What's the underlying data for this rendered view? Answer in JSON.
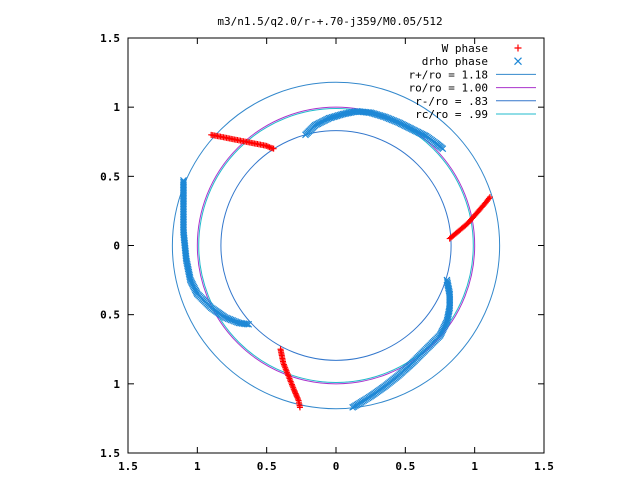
{
  "chart_data": {
    "type": "scatter",
    "title": "m3/n1.5/q2.0/r-+.70-j359/M0.05/512",
    "xlabel": "",
    "ylabel": "",
    "xlim": [
      -1.5,
      1.5
    ],
    "ylim": [
      -1.5,
      1.5
    ],
    "x_ticks": [
      -1.5,
      -1,
      -0.5,
      0,
      0.5,
      1,
      1.5
    ],
    "y_ticks": [
      -1.5,
      -1,
      -0.5,
      0,
      0.5,
      1,
      1.5
    ],
    "x_tick_labels": [
      "1.5",
      "1",
      "0.5",
      "0",
      "0.5",
      "1",
      "1.5"
    ],
    "y_tick_labels": [
      "1.5",
      "1",
      "0.5",
      "0",
      "0.5",
      "1",
      "1.5"
    ],
    "grid": false,
    "legend_position": "top-right",
    "legend": [
      {
        "label": "W phase",
        "kind": "points",
        "marker": "+",
        "color": "#ff0000"
      },
      {
        "label": "drho phase",
        "kind": "points",
        "marker": "x",
        "color": "#1e88d6"
      },
      {
        "label": "r+/ro = 1.18",
        "kind": "circle",
        "radius": 1.18,
        "color": "#3388cc"
      },
      {
        "label": "ro/ro = 1.00",
        "kind": "circle",
        "radius": 1.0,
        "color": "#aa33cc"
      },
      {
        "label": "r-/ro = .83",
        "kind": "circle",
        "radius": 0.83,
        "color": "#3377cc"
      },
      {
        "label": "rc/ro = .99",
        "kind": "circle",
        "radius": 0.99,
        "color": "#22bbcc"
      }
    ],
    "series": [
      {
        "name": "W phase",
        "marker": "+",
        "color": "#ff0000",
        "segments": [
          [
            [
              -0.9,
              0.8
            ],
            [
              -0.8,
              0.78
            ],
            [
              -0.7,
              0.76
            ],
            [
              -0.6,
              0.74
            ],
            [
              -0.5,
              0.72
            ],
            [
              -0.48,
              0.71
            ],
            [
              -0.45,
              0.7
            ]
          ],
          [
            [
              0.82,
              0.05
            ],
            [
              0.88,
              0.1
            ],
            [
              0.95,
              0.16
            ],
            [
              1.02,
              0.24
            ],
            [
              1.08,
              0.31
            ],
            [
              1.11,
              0.35
            ]
          ],
          [
            [
              -0.4,
              -0.75
            ],
            [
              -0.38,
              -0.85
            ],
            [
              -0.34,
              -0.95
            ],
            [
              -0.3,
              -1.05
            ],
            [
              -0.27,
              -1.12
            ],
            [
              -0.26,
              -1.17
            ]
          ]
        ]
      },
      {
        "name": "drho phase",
        "marker": "x",
        "color": "#1e88d6",
        "segments": [
          [
            [
              -0.22,
              0.8
            ],
            [
              -0.15,
              0.87
            ],
            [
              -0.05,
              0.92
            ],
            [
              0.05,
              0.95
            ],
            [
              0.15,
              0.97
            ],
            [
              0.25,
              0.96
            ],
            [
              0.35,
              0.93
            ],
            [
              0.45,
              0.89
            ],
            [
              0.55,
              0.84
            ],
            [
              0.65,
              0.79
            ],
            [
              0.72,
              0.74
            ],
            [
              0.77,
              0.7
            ]
          ],
          [
            [
              -1.1,
              0.47
            ],
            [
              -1.1,
              0.3
            ],
            [
              -1.1,
              0.1
            ],
            [
              -1.08,
              -0.1
            ],
            [
              -1.05,
              -0.25
            ],
            [
              -1.0,
              -0.35
            ],
            [
              -0.9,
              -0.45
            ],
            [
              -0.8,
              -0.52
            ],
            [
              -0.7,
              -0.56
            ],
            [
              -0.63,
              -0.57
            ]
          ],
          [
            [
              0.8,
              -0.25
            ],
            [
              0.82,
              -0.35
            ],
            [
              0.82,
              -0.45
            ],
            [
              0.8,
              -0.55
            ],
            [
              0.75,
              -0.65
            ],
            [
              0.65,
              -0.75
            ],
            [
              0.55,
              -0.85
            ],
            [
              0.45,
              -0.94
            ],
            [
              0.35,
              -1.02
            ],
            [
              0.25,
              -1.09
            ],
            [
              0.17,
              -1.14
            ],
            [
              0.12,
              -1.17
            ]
          ]
        ]
      }
    ]
  }
}
